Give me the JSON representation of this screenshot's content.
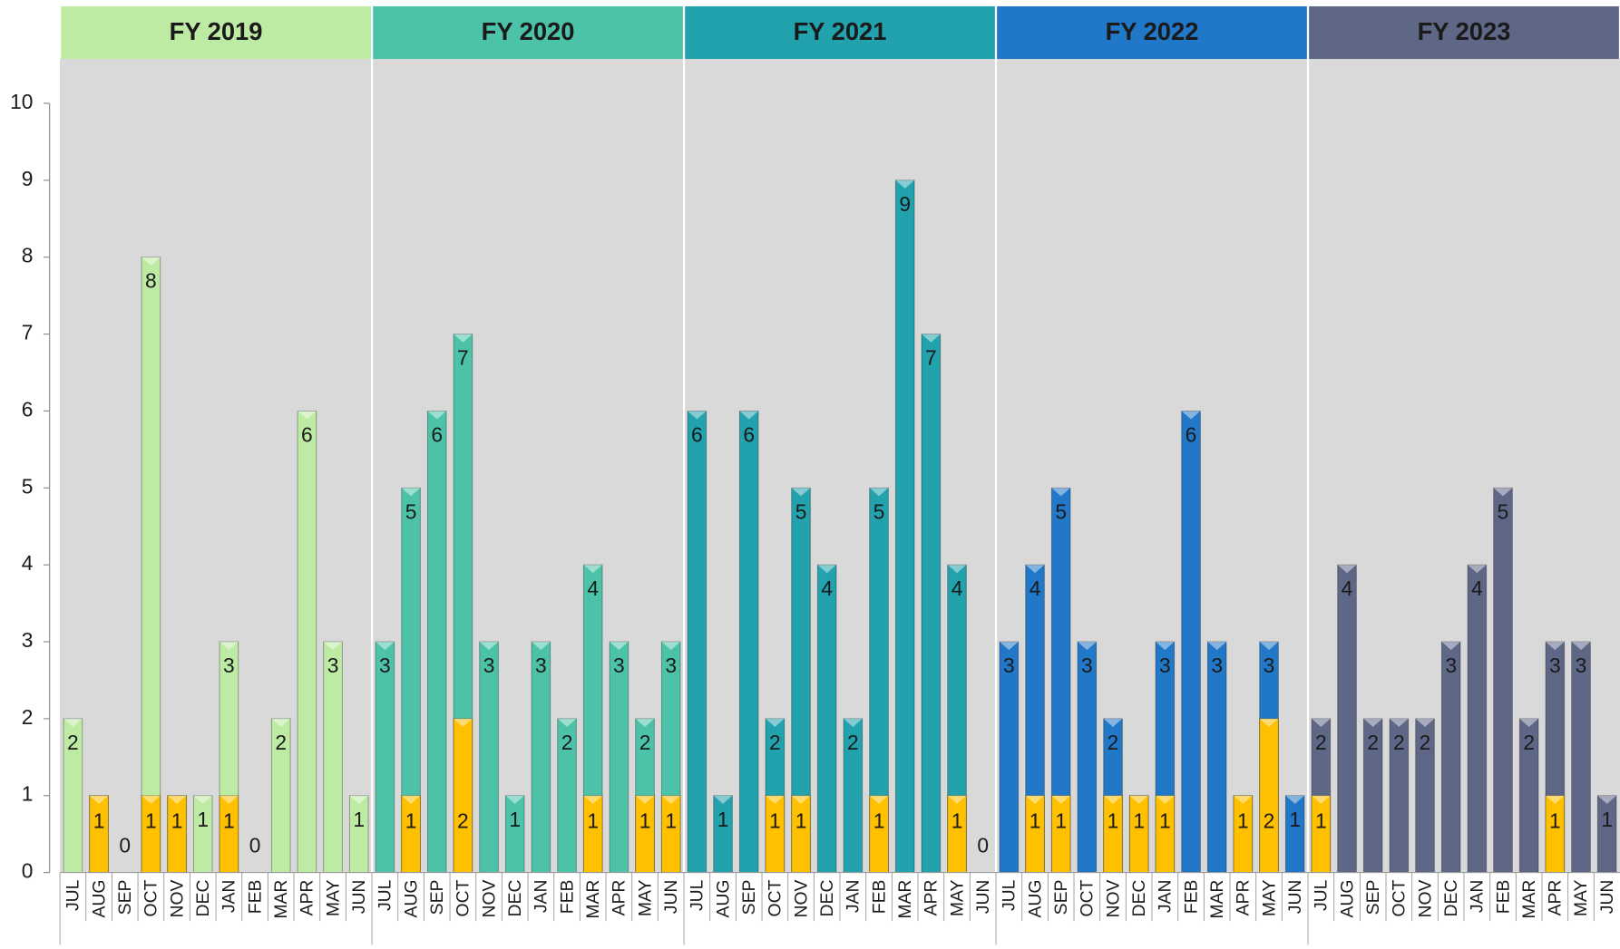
{
  "chart_data": {
    "type": "bar",
    "groups": [
      {
        "label": "FY 2019",
        "color": "#bdeba3"
      },
      {
        "label": "FY 2020",
        "color": "#4cc3a9"
      },
      {
        "label": "FY 2021",
        "color": "#22a2ad"
      },
      {
        "label": "FY 2022",
        "color": "#2177c8"
      },
      {
        "label": "FY 2023",
        "color": "#5f6787"
      }
    ],
    "categories": [
      "JUL",
      "AUG",
      "SEP",
      "OCT",
      "NOV",
      "DEC",
      "JAN",
      "FEB",
      "MAR",
      "APR",
      "MAY",
      "JUN",
      "JUL",
      "AUG",
      "SEP",
      "OCT",
      "NOV",
      "DEC",
      "JAN",
      "FEB",
      "MAR",
      "APR",
      "MAY",
      "JUN",
      "JUL",
      "AUG",
      "SEP",
      "OCT",
      "NOV",
      "DEC",
      "JAN",
      "FEB",
      "MAR",
      "APR",
      "MAY",
      "JUN",
      "JUL",
      "AUG",
      "SEP",
      "OCT",
      "NOV",
      "DEC",
      "JAN",
      "FEB",
      "MAR",
      "APR",
      "MAY",
      "JUN",
      "JUL",
      "AUG",
      "SEP",
      "OCT",
      "NOV",
      "DEC",
      "JAN",
      "FEB",
      "MAR",
      "APR",
      "MAY",
      "JUN"
    ],
    "series": [
      {
        "values": [
          2,
          1,
          0,
          8,
          1,
          1,
          3,
          0,
          2,
          6,
          3,
          1,
          3,
          5,
          6,
          7,
          3,
          1,
          3,
          2,
          4,
          3,
          2,
          3,
          6,
          1,
          6,
          2,
          5,
          4,
          2,
          5,
          9,
          7,
          4,
          0,
          3,
          4,
          5,
          3,
          2,
          1,
          3,
          6,
          3,
          1,
          3,
          1,
          2,
          4,
          2,
          2,
          2,
          3,
          4,
          5,
          2,
          3,
          3,
          1
        ]
      },
      {
        "color": "#ffc000",
        "values": [
          null,
          1,
          null,
          1,
          1,
          null,
          1,
          null,
          null,
          null,
          null,
          null,
          null,
          1,
          null,
          2,
          null,
          null,
          null,
          null,
          1,
          null,
          1,
          1,
          null,
          null,
          null,
          1,
          1,
          null,
          null,
          1,
          null,
          null,
          1,
          null,
          null,
          1,
          1,
          null,
          1,
          1,
          1,
          null,
          null,
          1,
          2,
          null,
          1,
          null,
          null,
          null,
          null,
          null,
          null,
          null,
          null,
          1,
          null,
          null
        ]
      }
    ],
    "ylim": [
      0,
      10
    ],
    "yticks": [
      0,
      1,
      2,
      3,
      4,
      5,
      6,
      7,
      8,
      9,
      10
    ]
  }
}
